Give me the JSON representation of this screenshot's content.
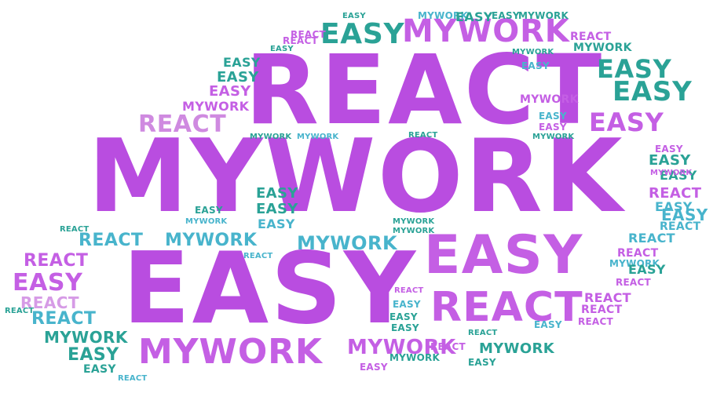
{
  "cloud": {
    "words": [
      "MYWORK",
      "REACT",
      "EASY"
    ],
    "colors": {
      "purple": "#b94de0",
      "violet": "#c45fe4",
      "lavender": "#cf8ae0",
      "teal": "#2aa296",
      "sky": "#48b4cc",
      "mauve": "#d69be6"
    }
  }
}
